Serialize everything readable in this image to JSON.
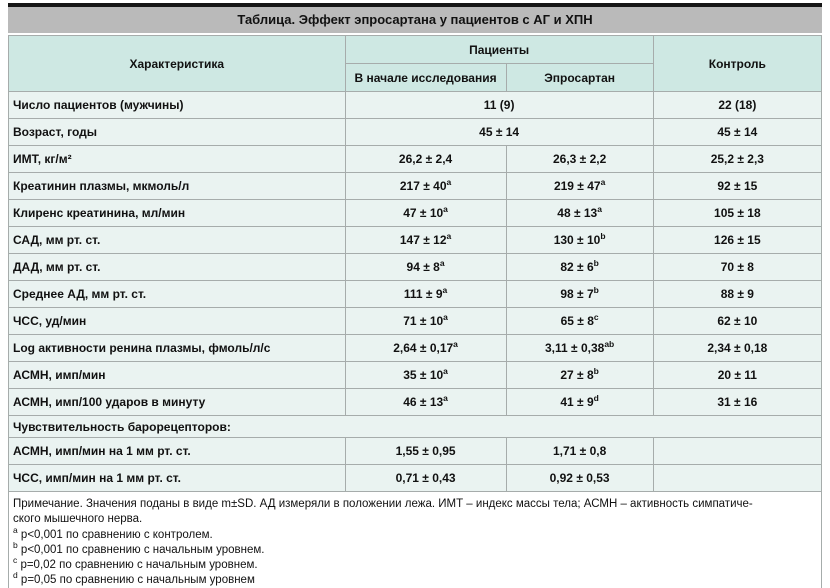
{
  "title": "Таблица. Эффект эпросартана у пациентов с АГ и ХПН",
  "colors": {
    "title_bar_bg": "#bababa",
    "header_bg": "#cee8e3",
    "body_bg": "#eaf3f1",
    "grid_line": "#a6acab",
    "outer_border": "#161616"
  },
  "table": {
    "header": {
      "characteristic": "Характеристика",
      "patients": "Пациенты",
      "sub_baseline": "В начале исследования",
      "sub_eprosartan": "Эпросартан",
      "control": "Контроль"
    },
    "rows": [
      {
        "label": "Число пациентов (мужчины)",
        "cells": [
          {
            "v": "11 (9)",
            "span": 2
          },
          {
            "v": "22 (18)"
          }
        ]
      },
      {
        "label": "Возраст, годы",
        "cells": [
          {
            "v": "45 ± 14",
            "span": 2
          },
          {
            "v": "45 ± 14"
          }
        ]
      },
      {
        "label": "ИМТ, кг/м²",
        "cells": [
          {
            "v": "26,2 ± 2,4"
          },
          {
            "v": "26,3 ± 2,2"
          },
          {
            "v": "25,2 ± 2,3"
          }
        ]
      },
      {
        "label": "Креатинин плазмы, мкмоль/л",
        "cells": [
          {
            "v": "217 ± 40",
            "s": "a"
          },
          {
            "v": "219 ± 47",
            "s": "a"
          },
          {
            "v": "92 ± 15"
          }
        ]
      },
      {
        "label": "Клиренс креатинина, мл/мин",
        "cells": [
          {
            "v": "47 ± 10",
            "s": "a"
          },
          {
            "v": "48 ± 13",
            "s": "a"
          },
          {
            "v": "105 ± 18"
          }
        ]
      },
      {
        "label": "САД, мм рт. ст.",
        "cells": [
          {
            "v": "147 ± 12",
            "s": "a"
          },
          {
            "v": "130 ± 10",
            "s": "b"
          },
          {
            "v": "126 ± 15"
          }
        ]
      },
      {
        "label": "ДАД, мм рт. ст.",
        "cells": [
          {
            "v": "94 ± 8",
            "s": "a"
          },
          {
            "v": "82 ± 6",
            "s": "b"
          },
          {
            "v": "70 ± 8"
          }
        ]
      },
      {
        "label": "Среднее АД, мм рт. ст.",
        "cells": [
          {
            "v": "111 ± 9",
            "s": "a"
          },
          {
            "v": "98 ± 7",
            "s": "b"
          },
          {
            "v": "88 ± 9"
          }
        ]
      },
      {
        "label": "ЧСС, уд/мин",
        "cells": [
          {
            "v": "71 ± 10",
            "s": "a"
          },
          {
            "v": "65 ± 8",
            "s": "c"
          },
          {
            "v": "62 ± 10"
          }
        ]
      },
      {
        "label": "Log активности ренина плазмы, фмоль/л/с",
        "cells": [
          {
            "v": "2,64 ± 0,17",
            "s": "a"
          },
          {
            "v": "3,11 ± 0,38",
            "s": "ab"
          },
          {
            "v": "2,34 ± 0,18"
          }
        ]
      },
      {
        "label": "АСМН, имп/мин",
        "cells": [
          {
            "v": "35 ± 10",
            "s": "a"
          },
          {
            "v": "27 ± 8",
            "s": "b"
          },
          {
            "v": "20 ± 11"
          }
        ]
      },
      {
        "label": "АСМН, имп/100 ударов в минуту",
        "cells": [
          {
            "v": "46 ± 13",
            "s": "a"
          },
          {
            "v": "41 ± 9",
            "s": "d"
          },
          {
            "v": "31 ± 16"
          }
        ]
      },
      {
        "label": "Чувствительность барорецепторов:",
        "section": true
      },
      {
        "label": "АСМН, имп/мин на 1 мм рт. ст.",
        "cells": [
          {
            "v": "1,55 ± 0,95"
          },
          {
            "v": "1,71 ± 0,8"
          },
          {
            "v": ""
          }
        ]
      },
      {
        "label": "ЧСС, имп/мин на 1 мм рт. ст.",
        "cells": [
          {
            "v": "0,71 ± 0,43"
          },
          {
            "v": "0,92 ± 0,53"
          },
          {
            "v": ""
          }
        ]
      }
    ]
  },
  "footnote": {
    "note_lines": [
      "Примечание. Значения поданы в виде m±SD. АД измеряли в положении лежа. ИМТ – индекс массы тела; АСМН – активность симпатиче-",
      "ского мышечного нерва."
    ],
    "items": [
      {
        "sup": "a",
        "text": "p<0,001 по сравнению с контролем."
      },
      {
        "sup": "b",
        "text": "p<0,001 по сравнению с начальным уровнем."
      },
      {
        "sup": "c",
        "text": "p=0,02 по сравнению с начальным уровнем."
      },
      {
        "sup": "d",
        "text": "p=0,05 по сравнению с начальным уровнем"
      }
    ]
  }
}
